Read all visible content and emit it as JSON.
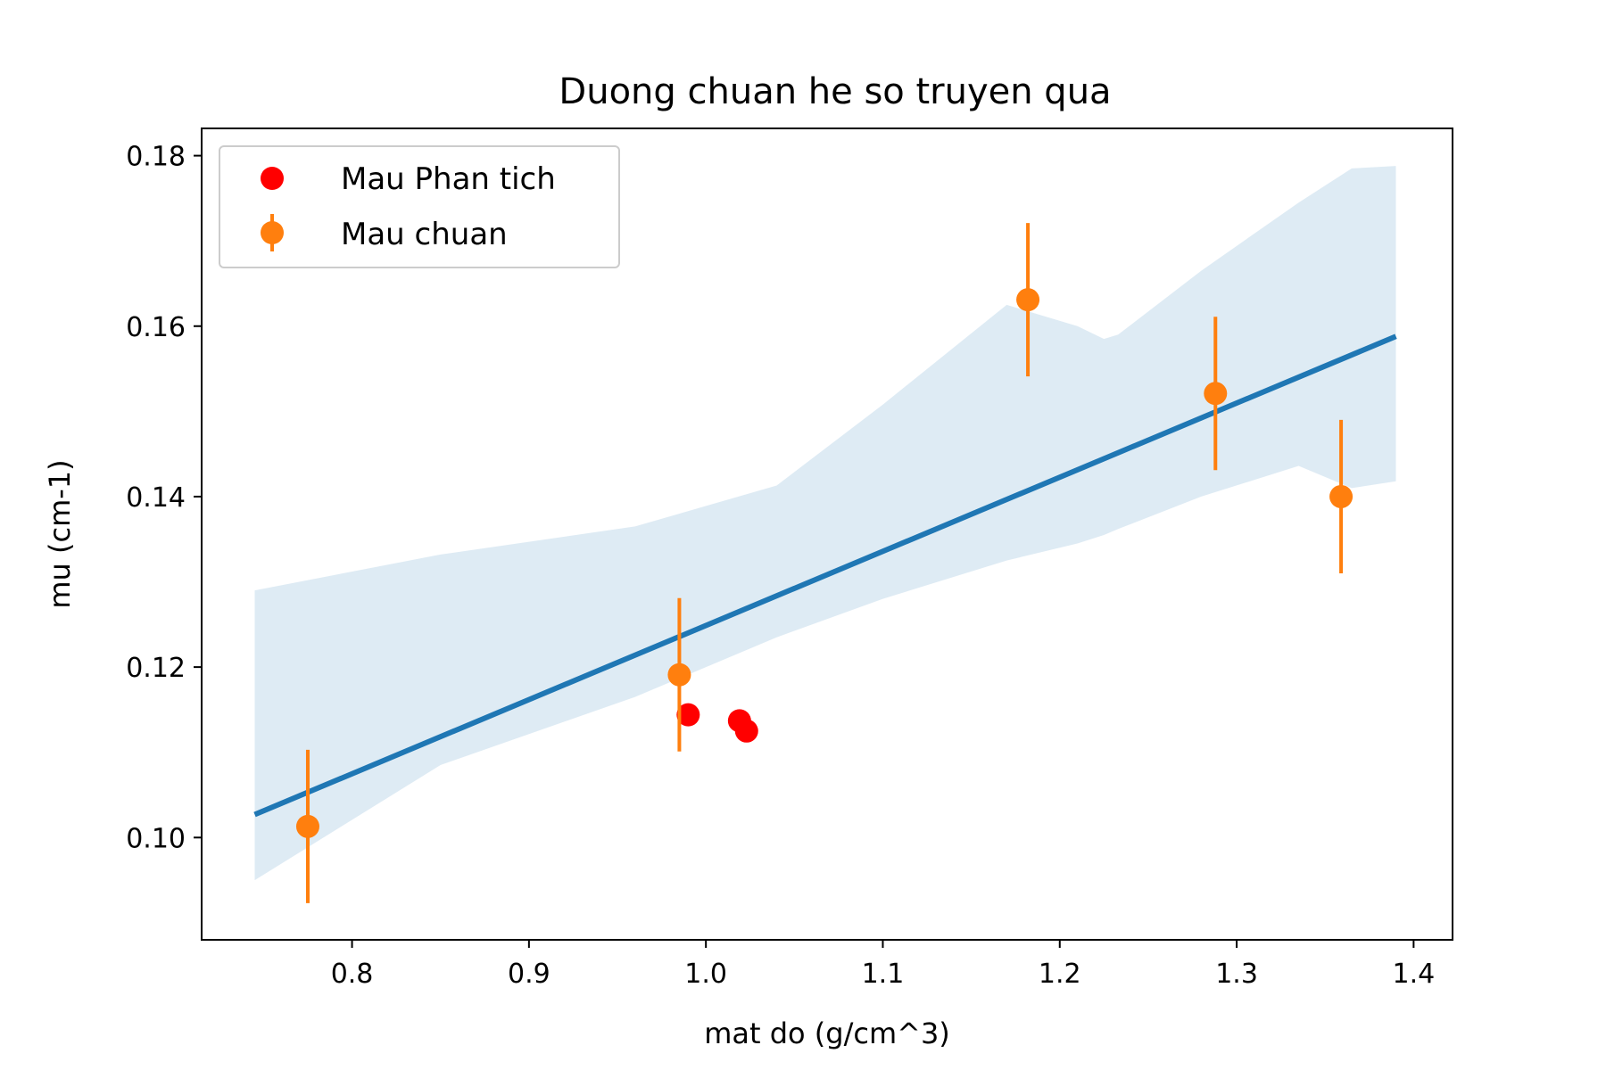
{
  "chart_data": {
    "type": "scatter",
    "title": "Duong chuan he so truyen qua",
    "xlabel": "mat do (g/cm^3)",
    "ylabel": "mu (cm-1)",
    "xlim": [
      0.715,
      1.422
    ],
    "ylim": [
      0.088,
      0.1832
    ],
    "x_ticks": [
      0.8,
      0.9,
      1.0,
      1.1,
      1.2,
      1.3,
      1.4
    ],
    "x_tick_labels": [
      "0.8",
      "0.9",
      "1.0",
      "1.1",
      "1.2",
      "1.3",
      "1.4"
    ],
    "y_ticks": [
      0.1,
      0.12,
      0.14,
      0.16,
      0.18
    ],
    "y_tick_labels": [
      "0.10",
      "0.12",
      "0.14",
      "0.16",
      "0.18"
    ],
    "grid": false,
    "legend_position": "top-left",
    "series": [
      {
        "name": "Mau Phan tich",
        "kind": "scatter",
        "color": "#ff0000",
        "x": [
          0.99,
          1.019,
          1.023
        ],
        "y": [
          0.1144,
          0.1137,
          0.1125
        ]
      },
      {
        "name": "Mau chuan",
        "kind": "errorbar",
        "color": "#ff7f0e",
        "x": [
          0.775,
          0.985,
          1.182,
          1.288,
          1.359
        ],
        "y": [
          0.1013,
          0.1191,
          0.1631,
          0.1521,
          0.14
        ],
        "yerr": [
          0.009,
          0.009,
          0.009,
          0.009,
          0.009
        ]
      }
    ],
    "regression": {
      "color": "#1f77b4",
      "x": [
        0.745,
        1.39
      ],
      "y": [
        0.1027,
        0.1588
      ]
    },
    "confidence_band": {
      "color": "#1f77b4",
      "opacity": 0.15,
      "x": [
        0.745,
        0.85,
        0.96,
        1.04,
        1.1,
        1.17,
        1.21,
        1.225,
        1.233,
        1.28,
        1.335,
        1.365,
        1.39
      ],
      "upper": [
        0.129,
        0.1332,
        0.1365,
        0.1413,
        0.1508,
        0.1625,
        0.16,
        0.1585,
        0.159,
        0.1665,
        0.1745,
        0.1785,
        0.1788
      ],
      "lower": [
        0.095,
        0.1085,
        0.1165,
        0.1235,
        0.128,
        0.1325,
        0.1345,
        0.1355,
        0.1362,
        0.14,
        0.1436,
        0.141,
        0.1418
      ]
    },
    "legend": [
      {
        "label": "Mau Phan tich",
        "marker": "dot",
        "color": "#ff0000"
      },
      {
        "label": "Mau chuan",
        "marker": "errorbar-dot",
        "color": "#ff7f0e"
      }
    ]
  }
}
